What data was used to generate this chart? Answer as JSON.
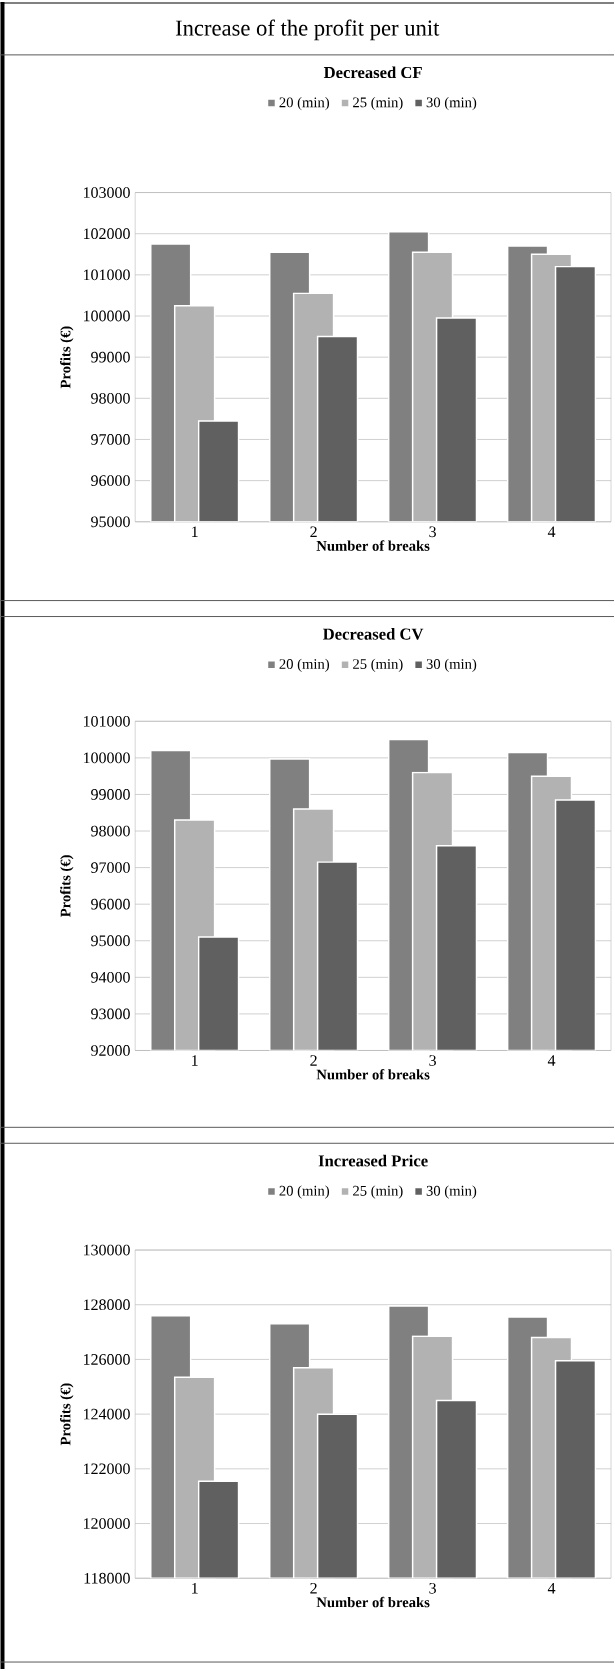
{
  "chart_data": [
    {
      "type": "bar",
      "title": "Decreased CF",
      "annotations": [
        "Increase of the profit per unit"
      ],
      "xlabel": "Number of breaks",
      "ylabel": "Profits (€)",
      "categories": [
        "1",
        "2",
        "3",
        "4"
      ],
      "series": [
        {
          "name": "20 (min)",
          "color": "#808080",
          "values": [
            101750,
            101550,
            102050,
            101700
          ]
        },
        {
          "name": "25 (min)",
          "color": "#b2b2b2",
          "values": [
            100250,
            100550,
            101550,
            101500
          ]
        },
        {
          "name": "30 (min)",
          "color": "#606060",
          "values": [
            97450,
            99500,
            99950,
            101200
          ]
        }
      ],
      "ylim": [
        95000,
        103000
      ],
      "yticks": [
        95000,
        96000,
        97000,
        98000,
        99000,
        100000,
        101000,
        102000,
        103000
      ],
      "grid": "y",
      "legend": "top"
    },
    {
      "type": "bar",
      "title": "Decreased CV",
      "xlabel": "Number of breaks",
      "ylabel": "Profits (€)",
      "categories": [
        "1",
        "2",
        "3",
        "4"
      ],
      "series": [
        {
          "name": "20 (min)",
          "color": "#808080",
          "values": [
            100200,
            99970,
            100500,
            100150
          ]
        },
        {
          "name": "25 (min)",
          "color": "#b2b2b2",
          "values": [
            98300,
            98600,
            99600,
            99500
          ]
        },
        {
          "name": "30 (min)",
          "color": "#606060",
          "values": [
            95100,
            97150,
            97600,
            98850
          ]
        }
      ],
      "ylim": [
        92000,
        101000
      ],
      "yticks": [
        92000,
        93000,
        94000,
        95000,
        96000,
        97000,
        98000,
        99000,
        100000,
        101000
      ],
      "grid": "y",
      "legend": "top"
    },
    {
      "type": "bar",
      "title": "Increased Price",
      "xlabel": "Number of breaks",
      "ylabel": "Profits (€)",
      "categories": [
        "1",
        "2",
        "3",
        "4"
      ],
      "series": [
        {
          "name": "20 (min)",
          "color": "#808080",
          "values": [
            127600,
            127300,
            127950,
            127550
          ]
        },
        {
          "name": "25 (min)",
          "color": "#b2b2b2",
          "values": [
            125350,
            125700,
            126850,
            126800
          ]
        },
        {
          "name": "30 (min)",
          "color": "#606060",
          "values": [
            121550,
            124000,
            124500,
            125950
          ]
        }
      ],
      "ylim": [
        118000,
        130000
      ],
      "yticks": [
        118000,
        120000,
        122000,
        124000,
        126000,
        128000,
        130000
      ],
      "grid": "y",
      "legend": "top"
    }
  ]
}
